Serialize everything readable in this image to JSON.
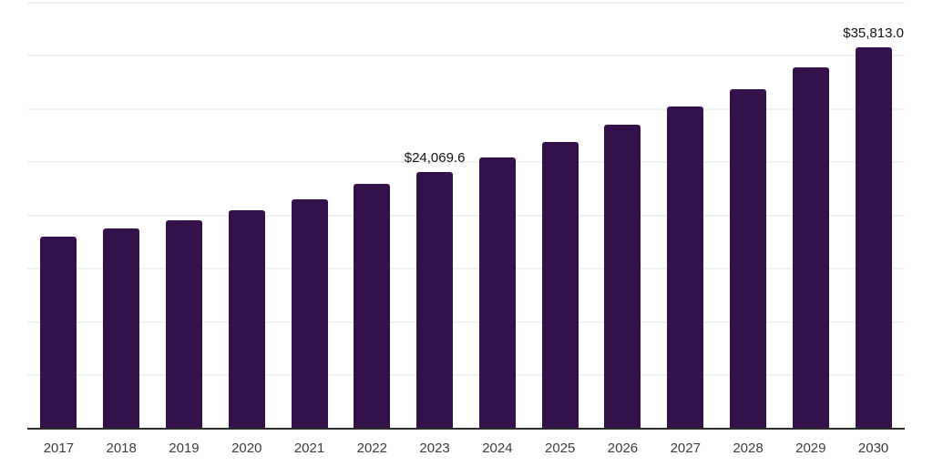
{
  "chart": {
    "colors": {
      "background": "#ffffff",
      "bar": "#34114a",
      "grid": "#f2f2f2",
      "axis": "#2b2b2b",
      "data_label": "#111111",
      "tick_label": "#3d3d3d"
    }
  },
  "chart_data": {
    "type": "bar",
    "title": "",
    "xlabel": "",
    "ylabel": "",
    "categories": [
      "2017",
      "2018",
      "2019",
      "2020",
      "2021",
      "2022",
      "2023",
      "2024",
      "2025",
      "2026",
      "2027",
      "2028",
      "2029",
      "2030"
    ],
    "values": [
      18030,
      18780,
      19550,
      20470,
      21530,
      22940,
      24069.6,
      25450,
      26930,
      28490,
      30190,
      31890,
      33880,
      35813.0
    ],
    "data_labels": [
      "",
      "",
      "",
      "",
      "",
      "",
      "$24,069.6",
      "",
      "",
      "",
      "",
      "",
      "",
      "$35,813.0"
    ],
    "ylim": [
      0,
      40000
    ],
    "grid_step": 5000,
    "grid": true,
    "legend": false
  }
}
